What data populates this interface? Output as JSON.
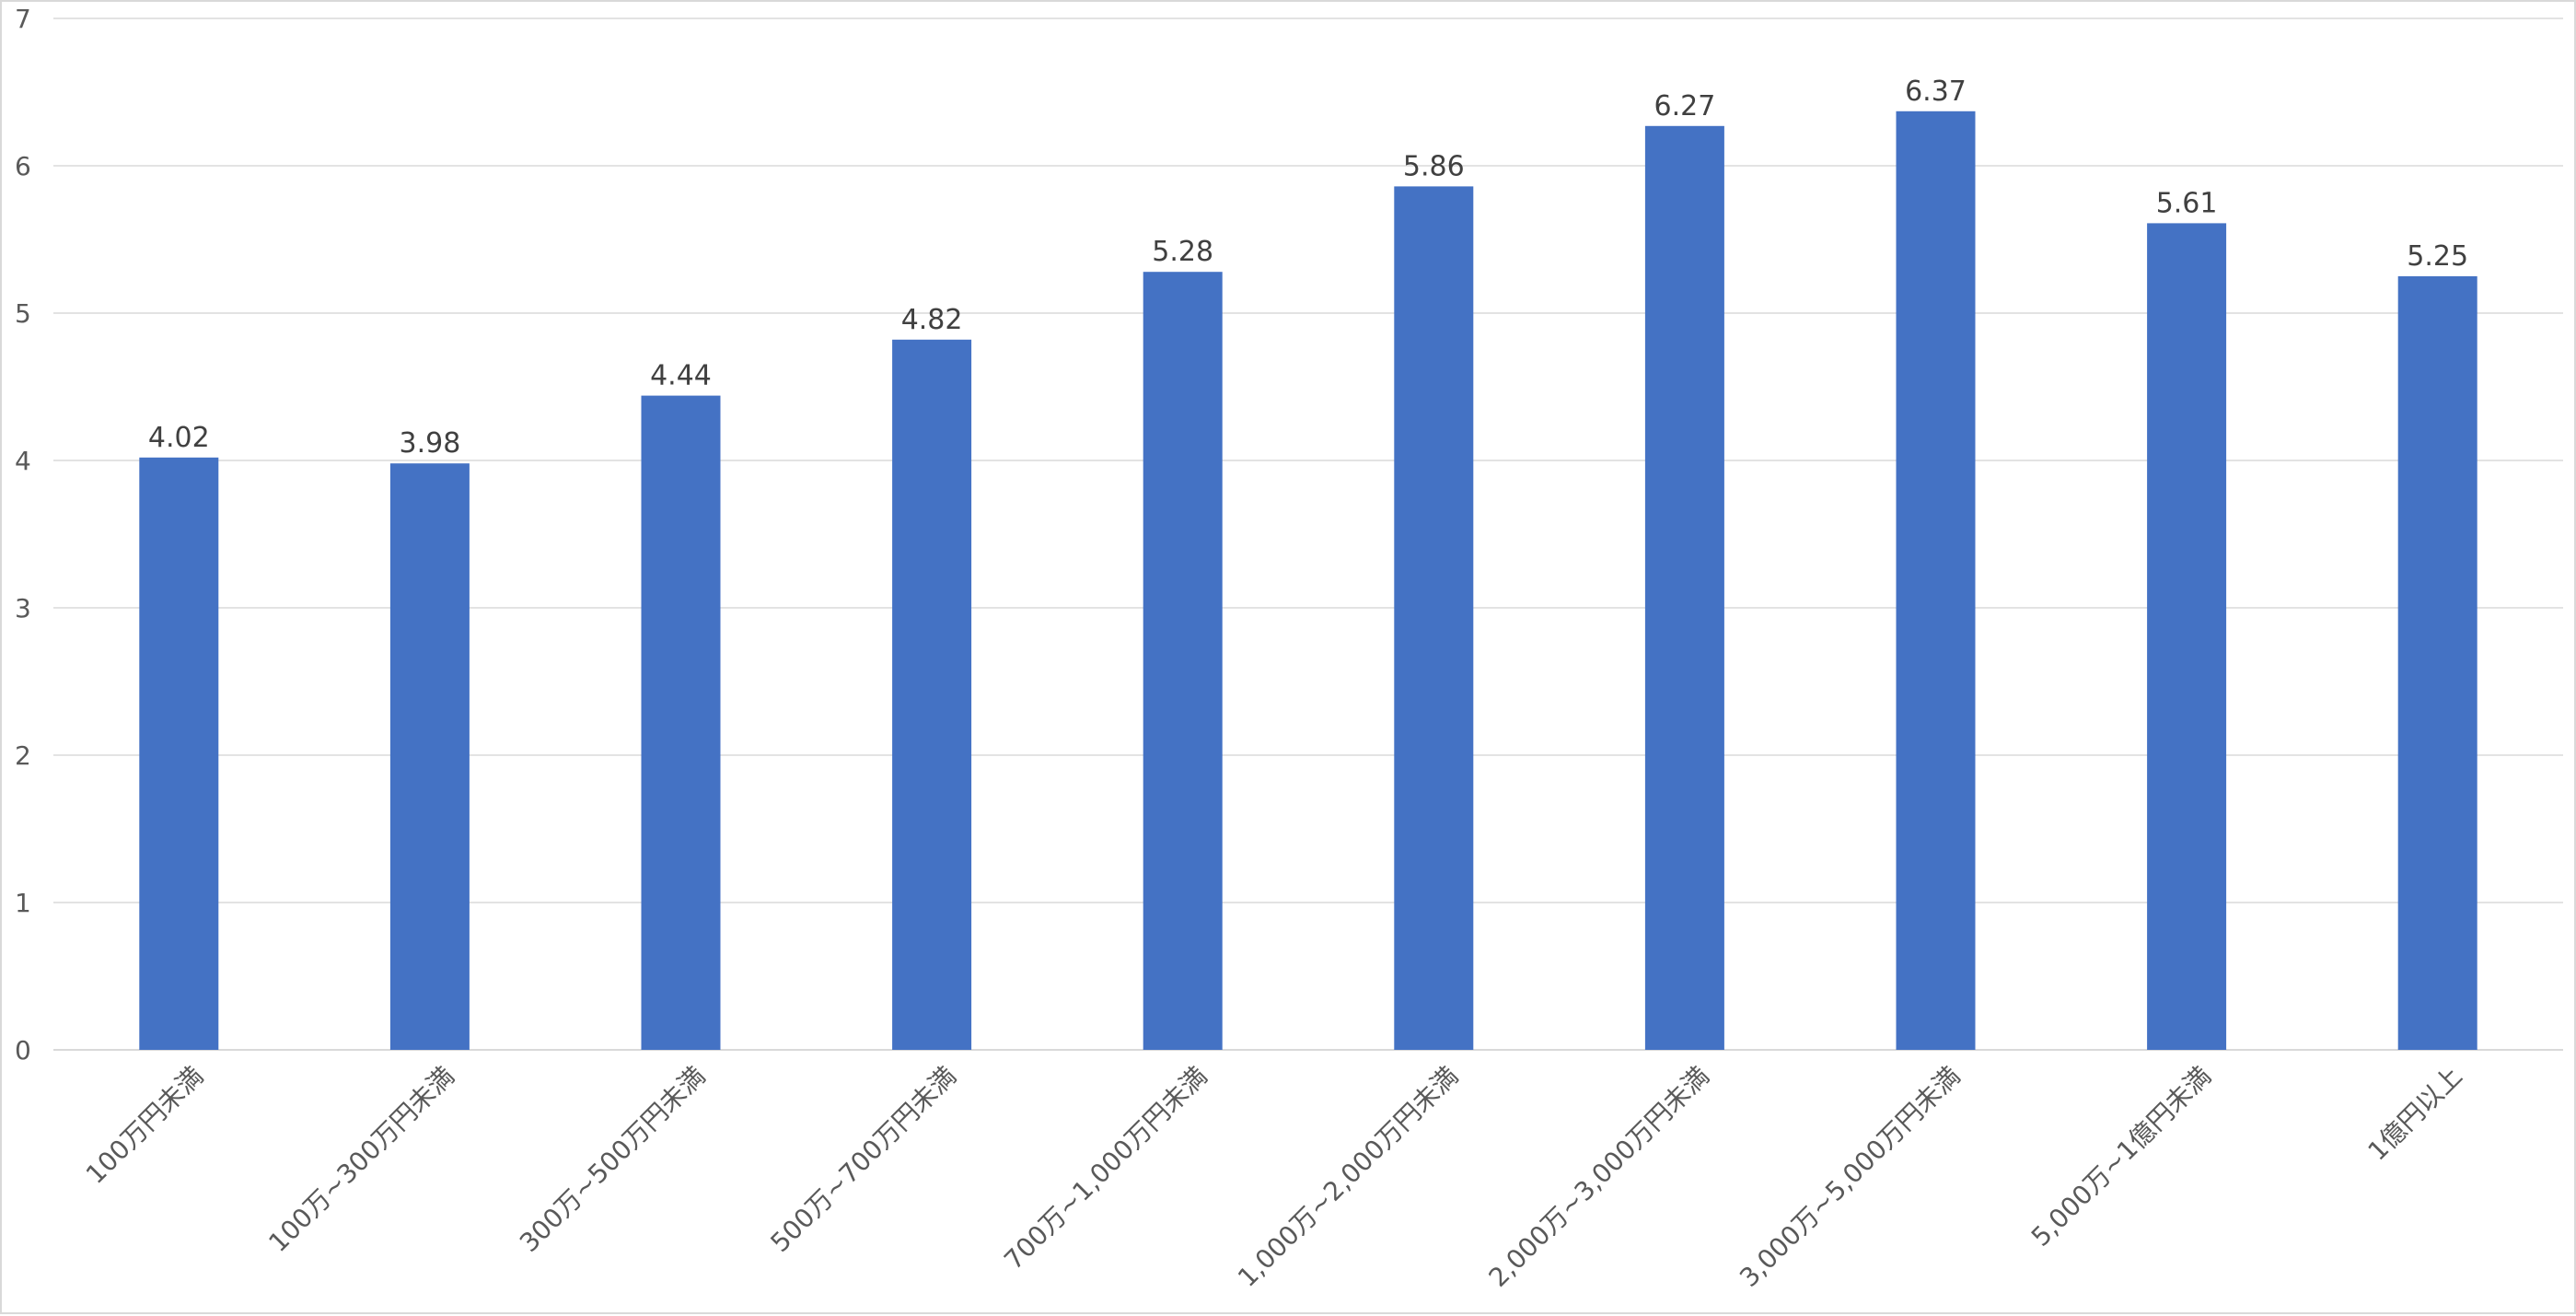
{
  "chart_data": {
    "type": "bar",
    "categories": [
      "100万円未満",
      "100万~300万円未満",
      "300万~500万円未満",
      "500万~700万円未満",
      "700万~1,000万円未満",
      "1,000万~2,000万円未満",
      "2,000万~3,000万円未満",
      "3,000万~5,000万円未満",
      "5,000万~1億円未満",
      "1億円以上"
    ],
    "values": [
      4.02,
      3.98,
      4.44,
      4.82,
      5.28,
      5.86,
      6.27,
      6.37,
      5.61,
      5.25
    ],
    "data_labels": [
      "4.02",
      "3.98",
      "4.44",
      "4.82",
      "5.28",
      "5.86",
      "6.27",
      "6.37",
      "5.61",
      "5.25"
    ],
    "yticks": [
      "0",
      "1",
      "2",
      "3",
      "4",
      "5",
      "6",
      "7"
    ],
    "ylim": [
      0,
      7
    ],
    "grid": true,
    "legend": "none",
    "bar_color": "#4472C4"
  }
}
